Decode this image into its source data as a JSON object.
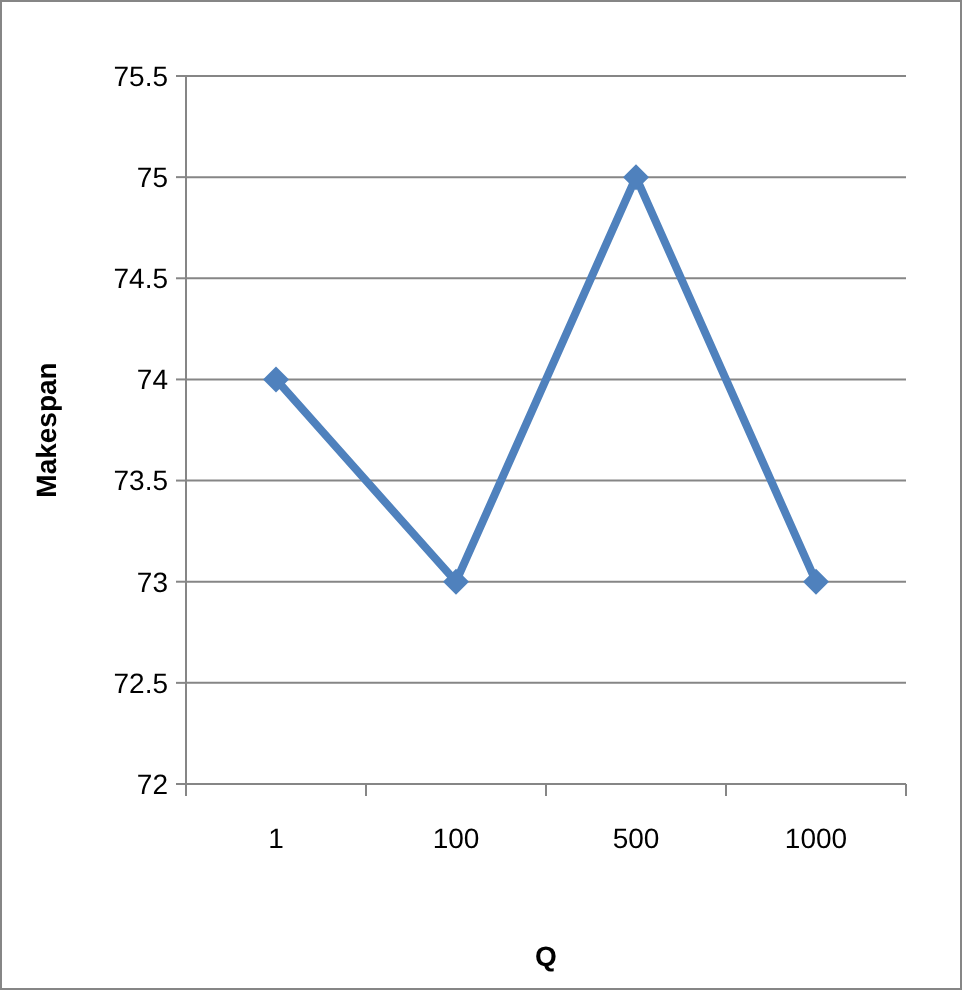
{
  "chart_data": {
    "type": "line",
    "xlabel": "Q",
    "ylabel": "Makespan",
    "categories": [
      "1",
      "100",
      "500",
      "1000"
    ],
    "series": [
      {
        "color": "#4f81bd",
        "values": [
          74,
          73,
          75,
          73
        ]
      }
    ],
    "ylim": [
      72,
      75.5
    ],
    "yticks": [
      72,
      72.5,
      73,
      73.5,
      74,
      74.5,
      75,
      75.5
    ],
    "grid": "y",
    "marker": "diamond",
    "line_style": "solid"
  }
}
